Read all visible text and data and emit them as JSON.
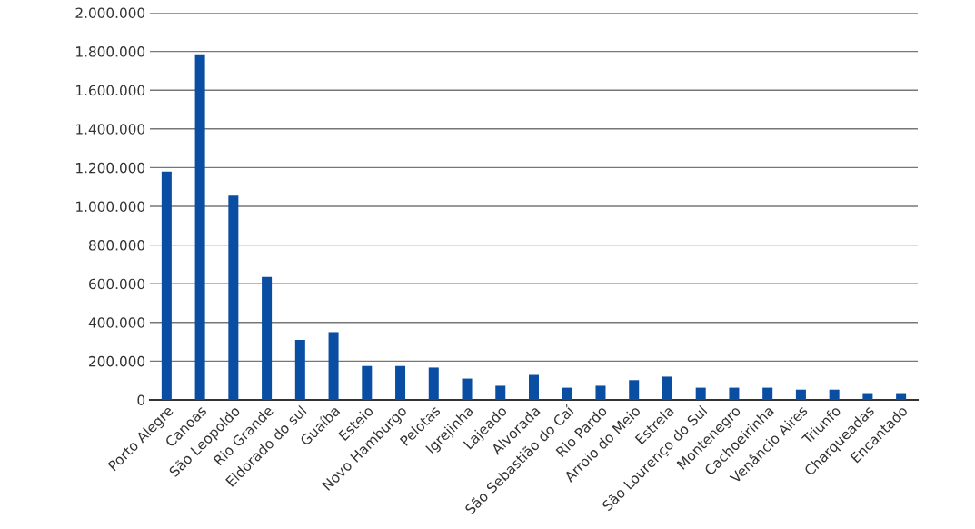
{
  "chart_data": {
    "type": "bar",
    "categories": [
      "Porto Alegre",
      "Canoas",
      "São Leopoldo",
      "Rio Grande",
      "Eldorado do sul",
      "Guaíba",
      "Esteio",
      "Novo Hamburgo",
      "Pelotas",
      "Igrejinha",
      "Lajeado",
      "Alvorada",
      "São Sebastião do Caí",
      "Rio Pardo",
      "Arroio do Meio",
      "Estrela",
      "São Lourenço do Sul",
      "Montenegro",
      "Cachoeirinha",
      "Venâncio Aires",
      "Triunfo",
      "Charqueadas",
      "Encantado"
    ],
    "values": [
      1180000,
      1785000,
      1055000,
      635000,
      310000,
      350000,
      175000,
      175000,
      167000,
      110000,
      73000,
      129000,
      63000,
      73000,
      102000,
      120000,
      63000,
      63000,
      63000,
      53000,
      53000,
      35000,
      35000
    ],
    "color": "#0a4ea3",
    "ylim": [
      0,
      2000000
    ],
    "yticks": [
      {
        "value": 0,
        "label": "0"
      },
      {
        "value": 200000,
        "label": "200.000"
      },
      {
        "value": 400000,
        "label": "400.000"
      },
      {
        "value": 600000,
        "label": "600.000"
      },
      {
        "value": 800000,
        "label": "800.000"
      },
      {
        "value": 1000000,
        "label": "1.000.000"
      },
      {
        "value": 1200000,
        "label": "1.200.000"
      },
      {
        "value": 1400000,
        "label": "1.400.000"
      },
      {
        "value": 1600000,
        "label": "1.600.000"
      },
      {
        "value": 1800000,
        "label": "1.800.000"
      },
      {
        "value": 2000000,
        "label": "2.000.000"
      }
    ],
    "grid": "y"
  }
}
